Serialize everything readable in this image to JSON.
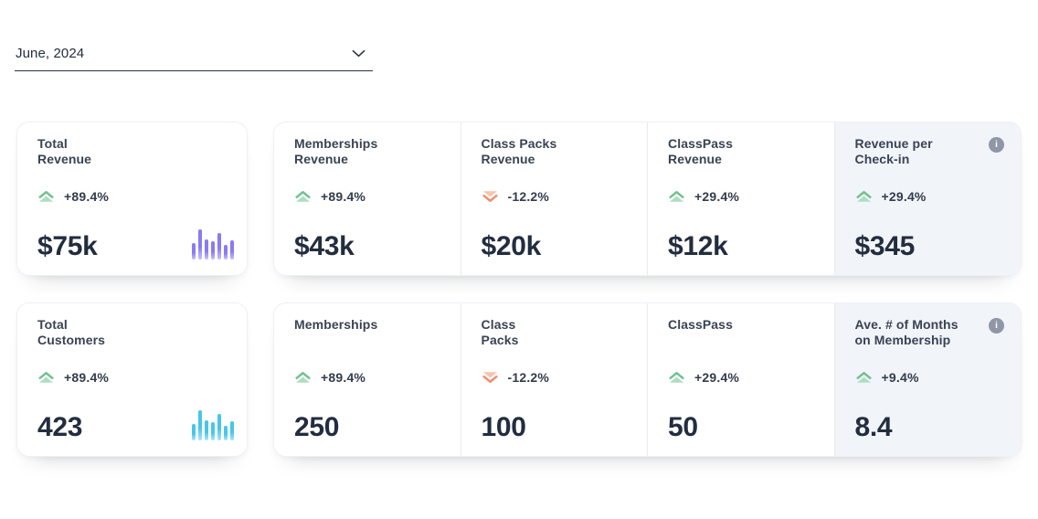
{
  "date_selector": {
    "value": "June, 2024"
  },
  "colors": {
    "trend_up_dark": "#72c091",
    "trend_up_light": "#aedec0",
    "trend_down_dark": "#ee8e6f",
    "trend_down_light": "#f7c3ad",
    "revenue_chart": "#8b7af2",
    "customers_chart": "#47c6e9",
    "highlight_bg": "#f1f4f9",
    "info_icon_bg": "#8f97a7",
    "value_text": "#232d3f",
    "title_text": "#3a4353"
  },
  "rows": [
    {
      "feature_card": {
        "title": "Total\nRevenue",
        "trend": "up",
        "change": "+89.4%",
        "value": "$75k",
        "chart": {
          "type": "bar",
          "color": "#8b7af2",
          "color_light": "#c9c1fa",
          "heights": [
            18,
            33,
            22,
            20,
            29,
            16,
            21
          ]
        }
      },
      "metrics": [
        {
          "title": "Memberships\nRevenue",
          "trend": "up",
          "change": "+89.4%",
          "value": "$43k"
        },
        {
          "title": "Class Packs\nRevenue",
          "trend": "down",
          "change": "-12.2%",
          "value": "$20k"
        },
        {
          "title": "ClassPass\nRevenue",
          "trend": "up",
          "change": "+29.4%",
          "value": "$12k"
        },
        {
          "title": "Revenue per\nCheck-in",
          "trend": "up",
          "change": "+29.4%",
          "value": "$345",
          "info_icon": "i",
          "highlighted": true
        }
      ]
    },
    {
      "feature_card": {
        "title": "Total\nCustomers",
        "trend": "up",
        "change": "+89.4%",
        "value": "423",
        "chart": {
          "type": "bar",
          "color": "#47c6e9",
          "color_light": "#abe7f6",
          "heights": [
            18,
            33,
            22,
            20,
            29,
            16,
            21
          ]
        }
      },
      "metrics": [
        {
          "title": "Memberships",
          "trend": "up",
          "change": "+89.4%",
          "value": "250"
        },
        {
          "title": "Class\nPacks",
          "trend": "down",
          "change": "-12.2%",
          "value": "100"
        },
        {
          "title": "ClassPass",
          "trend": "up",
          "change": "+29.4%",
          "value": "50"
        },
        {
          "title": "Ave. # of Months\non Membership",
          "trend": "up",
          "change": "+9.4%",
          "value": "8.4",
          "info_icon": "i",
          "highlighted": true
        }
      ]
    }
  ]
}
